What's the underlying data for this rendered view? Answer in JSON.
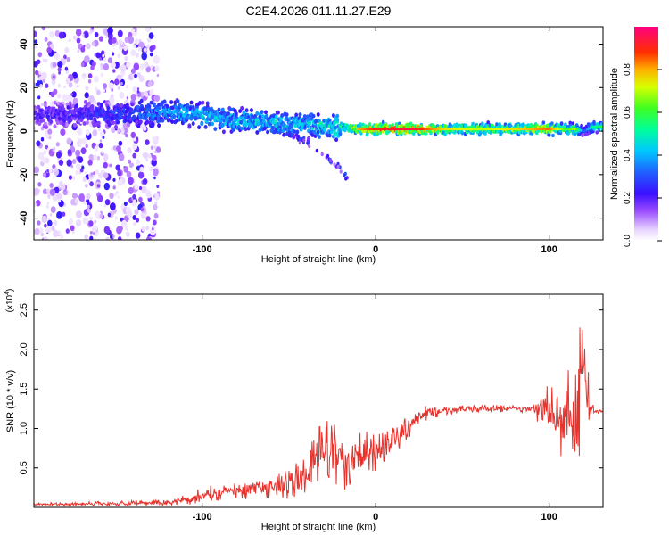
{
  "title": "C2E4.2026.011.11.27.E29",
  "chart_data": [
    {
      "type": "heatmap",
      "xlabel": "Height of straight line (km)",
      "ylabel": "Frequency (Hz)",
      "xlim": [
        -197,
        131
      ],
      "ylim": [
        -50,
        48
      ],
      "xticks": [
        -100,
        0,
        100
      ],
      "xtick_labels": [
        "-100",
        "0",
        "100"
      ],
      "yticks": [
        -40,
        -20,
        0,
        20,
        40
      ],
      "ytick_labels": [
        "-40",
        "-20",
        "0",
        "20",
        "40"
      ],
      "ridge": {
        "x": [
          -197,
          -180,
          -160,
          -140,
          -120,
          -100,
          -80,
          -60,
          -40,
          -20,
          -10,
          0,
          20,
          40,
          60,
          80,
          100,
          110,
          115,
          120,
          125,
          131
        ],
        "freq": [
          7,
          8,
          8,
          8,
          9,
          7,
          5,
          4,
          3,
          2,
          1,
          1,
          1,
          1,
          1,
          1,
          1,
          1,
          1,
          0,
          2,
          2
        ],
        "amplitude": [
          0.25,
          0.25,
          0.3,
          0.35,
          0.45,
          0.5,
          0.5,
          0.5,
          0.5,
          0.6,
          0.8,
          0.9,
          0.95,
          0.75,
          0.7,
          0.75,
          0.85,
          0.6,
          0.7,
          0.3,
          0.5,
          0.6
        ]
      },
      "branch": {
        "x": [
          -60,
          -40,
          -30,
          -20,
          -15
        ],
        "freq": [
          2,
          -5,
          -10,
          -18,
          -24
        ]
      },
      "colorbar": {
        "label": "Normalized spectral amplitude",
        "range": [
          0,
          1
        ],
        "ticks": [
          0.0,
          0.2,
          0.4,
          0.6,
          0.8
        ],
        "tick_labels": [
          "0.0",
          "0.2",
          "0.4",
          "0.6",
          "0.8"
        ]
      }
    },
    {
      "type": "line",
      "xlabel": "Height of straight line (km)",
      "ylabel": "SNR (10 * v/v)",
      "multiplier": "(x10",
      "multiplier_exp": "4",
      "multiplier_close": ")",
      "xlim": [
        -197,
        131
      ],
      "ylim": [
        0,
        2.7
      ],
      "xticks": [
        -100,
        0,
        100
      ],
      "xtick_labels": [
        "-100",
        "0",
        "100"
      ],
      "yticks": [
        0.5,
        1.0,
        1.5,
        2.0,
        2.5
      ],
      "ytick_labels": [
        "0.5",
        "1.0",
        "1.5",
        "2.0",
        "2.5"
      ],
      "color": "#e8322c",
      "series": [
        {
          "name": "SNR",
          "x": [
            -197,
            -180,
            -160,
            -140,
            -120,
            -110,
            -100,
            -90,
            -80,
            -70,
            -60,
            -50,
            -40,
            -35,
            -30,
            -25,
            -20,
            -15,
            -10,
            -5,
            0,
            5,
            10,
            15,
            20,
            25,
            30,
            40,
            50,
            60,
            70,
            80,
            90,
            95,
            100,
            105,
            110,
            112,
            115,
            117,
            120,
            122,
            125,
            131
          ],
          "y": [
            0.04,
            0.04,
            0.05,
            0.05,
            0.06,
            0.1,
            0.15,
            0.2,
            0.22,
            0.25,
            0.25,
            0.3,
            0.4,
            0.6,
            0.75,
            0.7,
            0.6,
            0.55,
            0.7,
            0.75,
            0.7,
            0.72,
            0.85,
            0.95,
            1.05,
            1.15,
            1.2,
            1.22,
            1.24,
            1.25,
            1.25,
            1.25,
            1.25,
            1.25,
            1.2,
            1.1,
            1.1,
            1.3,
            0.9,
            1.4,
            1.8,
            1.3,
            1.22,
            1.22
          ]
        }
      ],
      "noise_amplitude": [
        {
          "x": -197,
          "a": 0.02
        },
        {
          "x": -120,
          "a": 0.04
        },
        {
          "x": -100,
          "a": 0.1
        },
        {
          "x": -60,
          "a": 0.15
        },
        {
          "x": -40,
          "a": 0.25
        },
        {
          "x": -30,
          "a": 0.4
        },
        {
          "x": -15,
          "a": 0.35
        },
        {
          "x": 0,
          "a": 0.25
        },
        {
          "x": 20,
          "a": 0.15
        },
        {
          "x": 40,
          "a": 0.05
        },
        {
          "x": 90,
          "a": 0.05
        },
        {
          "x": 97,
          "a": 0.3
        },
        {
          "x": 105,
          "a": 0.4
        },
        {
          "x": 112,
          "a": 0.6
        },
        {
          "x": 118,
          "a": 0.9
        },
        {
          "x": 122,
          "a": 0.5
        },
        {
          "x": 126,
          "a": 0.03
        },
        {
          "x": 131,
          "a": 0.03
        }
      ]
    }
  ]
}
